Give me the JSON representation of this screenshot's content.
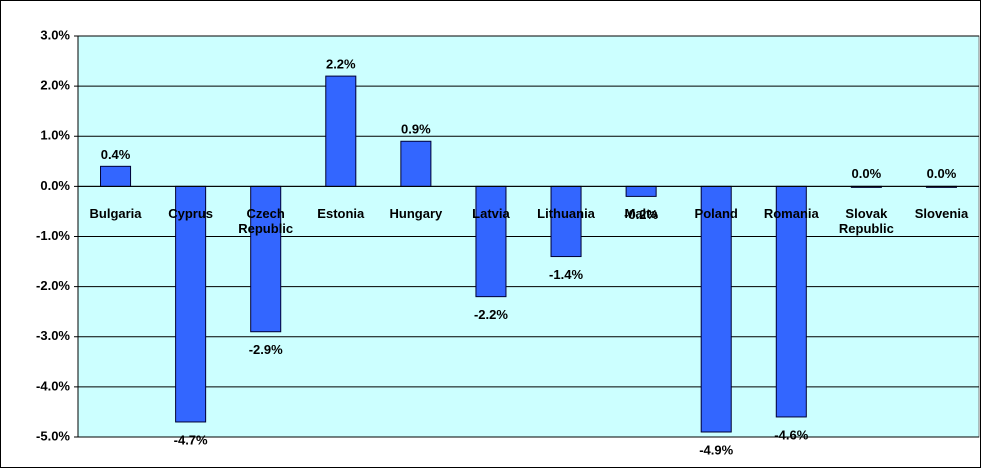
{
  "chart_data": {
    "type": "bar",
    "categories": [
      "Bulgaria",
      "Cyprus",
      "Czech Republic",
      "Estonia",
      "Hungary",
      "Latvia",
      "Lithuania",
      "Malta",
      "Poland",
      "Romania",
      "Slovak Republic",
      "Slovenia"
    ],
    "values": [
      0.4,
      -4.7,
      -2.9,
      2.2,
      0.9,
      -2.2,
      -1.4,
      -0.2,
      -4.9,
      -4.6,
      0.0,
      0.0
    ],
    "value_labels": [
      "0.4%",
      "-4.7%",
      "-2.9%",
      "2.2%",
      "0.9%",
      "-2.2%",
      "-1.4%",
      "-0.2%",
      "-4.9%",
      "-4.6%",
      "0.0%",
      "0.0%"
    ],
    "color": "#3366ff",
    "ylim": [
      -5,
      3
    ],
    "yticks": [
      {
        "value": -5,
        "label": "-5.0%"
      },
      {
        "value": -4,
        "label": "-4.0%"
      },
      {
        "value": -3,
        "label": "-3.0%"
      },
      {
        "value": -2,
        "label": "-2.0%"
      },
      {
        "value": -1,
        "label": "-1.0%"
      },
      {
        "value": 0,
        "label": "0.0%"
      },
      {
        "value": 1,
        "label": "1.0%"
      },
      {
        "value": 2,
        "label": "2.0%"
      },
      {
        "value": 3,
        "label": "3.0%"
      }
    ],
    "grid": true
  }
}
